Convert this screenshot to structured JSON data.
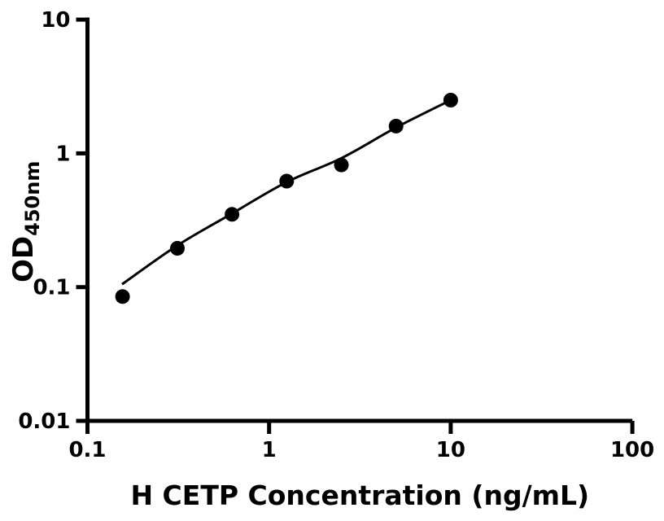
{
  "figure": {
    "background_color": "#ffffff",
    "ink_color": "#000000"
  },
  "chart_data": {
    "type": "scatter",
    "title": "",
    "xlabel": "H CETP Concentration (ng/mL)",
    "ylabel": "OD",
    "ylabel_subscript": "450nm",
    "x_scale": "log10",
    "y_scale": "log10",
    "xlim": [
      0.1,
      100
    ],
    "ylim": [
      0.01,
      10
    ],
    "x_ticks": [
      0.1,
      1,
      10,
      100
    ],
    "x_tick_labels": [
      "0.1",
      "1",
      "10",
      "100"
    ],
    "y_ticks": [
      10,
      1,
      0.1,
      0.01
    ],
    "y_tick_labels": [
      "10",
      "1",
      "0.1",
      "0.01"
    ],
    "grid": false,
    "legend": "none",
    "marker": {
      "shape": "filled-circle",
      "color": "#000000",
      "radius_px": 9
    },
    "series": [
      {
        "points": [
          {
            "x": 0.156,
            "y": 0.085
          },
          {
            "x": 0.3125,
            "y": 0.195
          },
          {
            "x": 0.625,
            "y": 0.35
          },
          {
            "x": 1.25,
            "y": 0.62
          },
          {
            "x": 2.5,
            "y": 0.82
          },
          {
            "x": 5,
            "y": 1.6
          },
          {
            "x": 10,
            "y": 2.5
          }
        ]
      }
    ],
    "fit_curve": {
      "color": "#000000",
      "points": [
        {
          "x": 0.155,
          "y": 0.105
        },
        {
          "x": 0.3125,
          "y": 0.205
        },
        {
          "x": 0.625,
          "y": 0.355
        },
        {
          "x": 1.25,
          "y": 0.61
        },
        {
          "x": 2.5,
          "y": 0.92
        },
        {
          "x": 5,
          "y": 1.56
        },
        {
          "x": 10,
          "y": 2.5
        }
      ]
    }
  }
}
